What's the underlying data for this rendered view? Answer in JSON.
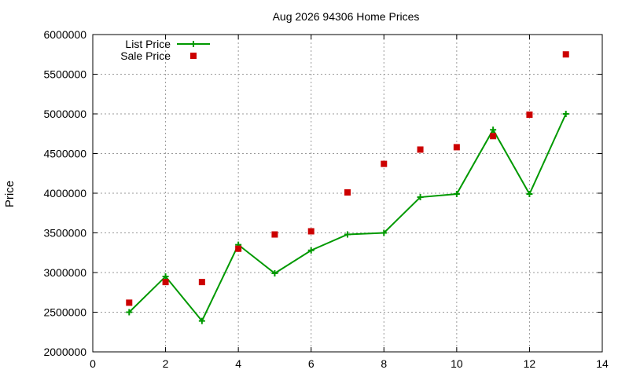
{
  "chart_data": {
    "type": "line",
    "title": "Aug 2026 94306 Home Prices",
    "xlabel": "",
    "ylabel": "Price",
    "xlim": [
      0,
      14
    ],
    "ylim": [
      2000000,
      6000000
    ],
    "x_ticks": [
      0,
      2,
      4,
      6,
      8,
      10,
      12,
      14
    ],
    "y_ticks": [
      2000000,
      2500000,
      3000000,
      3500000,
      4000000,
      4500000,
      5000000,
      5500000,
      6000000
    ],
    "grid": true,
    "legend_position": "top-left",
    "series": [
      {
        "name": "List Price",
        "style": "line-plus",
        "color": "#009900",
        "x": [
          1,
          2,
          3,
          4,
          5,
          6,
          7,
          8,
          9,
          10,
          11,
          12,
          13
        ],
        "values": [
          2500000,
          2950000,
          2390000,
          3350000,
          2990000,
          3280000,
          3480000,
          3500000,
          3950000,
          3990000,
          4800000,
          3990000,
          5000000
        ]
      },
      {
        "name": "Sale Price",
        "style": "square",
        "color": "#cc0000",
        "x": [
          1,
          2,
          3,
          4,
          5,
          6,
          7,
          8,
          9,
          10,
          11,
          12,
          13
        ],
        "values": [
          2620000,
          2880000,
          2880000,
          3300000,
          3480000,
          3520000,
          4010000,
          4370000,
          4550000,
          4580000,
          4720000,
          4990000,
          5750000
        ]
      }
    ]
  }
}
